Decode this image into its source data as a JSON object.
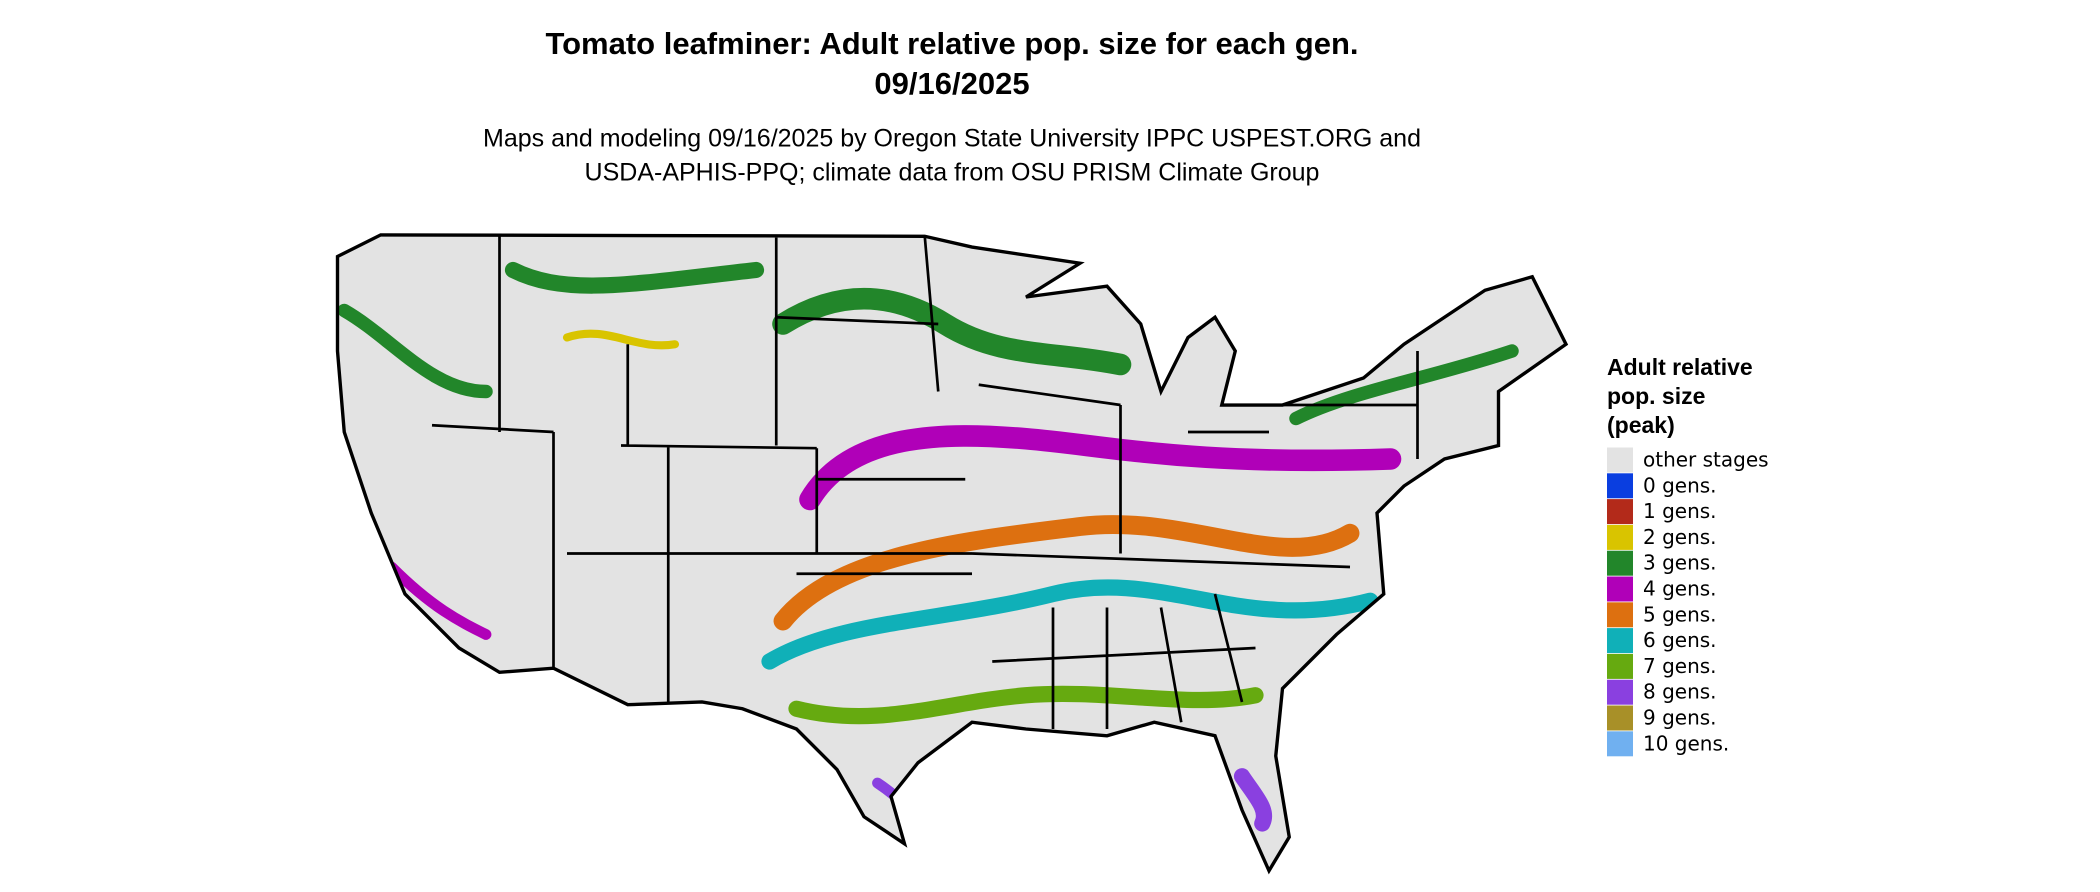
{
  "title": "Tomato leafminer: Adult relative pop. size for each gen.",
  "date": "09/16/2025",
  "subtitle": [
    "Maps and modeling 09/16/2025 by Oregon State University IPPC USPEST.ORG and",
    "USDA-APHIS-PPQ; climate data from OSU PRISM Climate Group"
  ],
  "legend": {
    "title": [
      "Adult relative",
      "pop. size",
      "(peak)"
    ],
    "items": [
      {
        "label": "other stages",
        "color": "#e3e3e3"
      },
      {
        "label": "0 gens.",
        "color": "#0a3ee0"
      },
      {
        "label": "1 gens.",
        "color": "#b32a1a"
      },
      {
        "label": "2 gens.",
        "color": "#d9c400"
      },
      {
        "label": "3 gens.",
        "color": "#22862a"
      },
      {
        "label": "4 gens.",
        "color": "#b000b8"
      },
      {
        "label": "5 gens.",
        "color": "#dd7010"
      },
      {
        "label": "6 gens.",
        "color": "#10b0b8"
      },
      {
        "label": "7 gens.",
        "color": "#66aa10"
      },
      {
        "label": "8 gens.",
        "color": "#8a40e0"
      },
      {
        "label": "9 gens.",
        "color": "#a89028"
      },
      {
        "label": "10 gens.",
        "color": "#70b0f0"
      }
    ]
  }
}
